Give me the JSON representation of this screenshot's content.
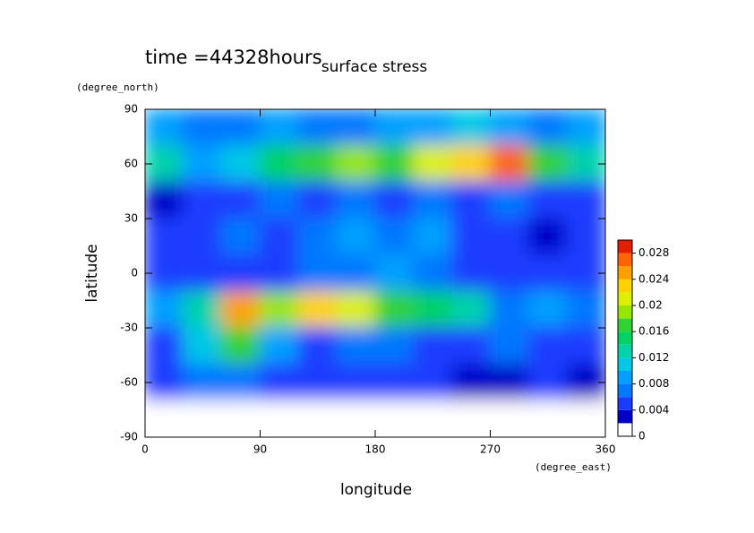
{
  "chart_data": {
    "type": "contour",
    "title": "surface stress",
    "subtitle": "time =44328hours",
    "xlabel": "longitude",
    "xunit": "(degree_east)",
    "ylabel": "latitude",
    "yunit": "(degree_north)",
    "xlim": [
      0,
      360
    ],
    "xticks": [
      0,
      90,
      180,
      270,
      360
    ],
    "ylim": [
      -90,
      90
    ],
    "yticks": [
      -90,
      -60,
      -30,
      0,
      30,
      60,
      90
    ],
    "x": [
      15,
      45,
      75,
      105,
      135,
      165,
      195,
      225,
      255,
      285,
      315,
      345
    ],
    "y": [
      80,
      60,
      40,
      20,
      0,
      -20,
      -40,
      -60,
      -80
    ],
    "z": [
      [
        0.008,
        0.006,
        0.006,
        0.008,
        0.006,
        0.006,
        0.008,
        0.008,
        0.01,
        0.008,
        0.006,
        0.008
      ],
      [
        0.012,
        0.008,
        0.01,
        0.014,
        0.016,
        0.018,
        0.016,
        0.02,
        0.022,
        0.026,
        0.016,
        0.012
      ],
      [
        0.002,
        0.004,
        0.004,
        0.006,
        0.004,
        0.006,
        0.004,
        0.006,
        0.004,
        0.006,
        0.004,
        0.004
      ],
      [
        0.004,
        0.004,
        0.006,
        0.004,
        0.006,
        0.008,
        0.006,
        0.008,
        0.004,
        0.004,
        0.002,
        0.004
      ],
      [
        0.004,
        0.004,
        0.004,
        0.004,
        0.006,
        0.006,
        0.008,
        0.006,
        0.004,
        0.004,
        0.004,
        0.004
      ],
      [
        0.008,
        0.012,
        0.024,
        0.018,
        0.022,
        0.02,
        0.016,
        0.014,
        0.012,
        0.006,
        0.008,
        0.006
      ],
      [
        0.004,
        0.01,
        0.016,
        0.008,
        0.004,
        0.006,
        0.006,
        0.004,
        0.004,
        0.006,
        0.004,
        0.004
      ],
      [
        0.004,
        0.006,
        0.006,
        0.004,
        0.004,
        0.004,
        0.004,
        0.004,
        0.002,
        0.002,
        0.004,
        0.002
      ],
      [
        0,
        0,
        0,
        0,
        0,
        0,
        0,
        0,
        0,
        0,
        0,
        0
      ]
    ],
    "clim": [
      0,
      0.03
    ],
    "cticks": [
      0,
      0.004,
      0.008,
      0.012,
      0.016,
      0.02,
      0.024,
      0.028
    ],
    "colors": [
      "#ffffff",
      "#0000c8",
      "#1a3cff",
      "#0078ff",
      "#00a0ff",
      "#00c8e6",
      "#00d2aa",
      "#00d264",
      "#32d232",
      "#96e600",
      "#dcf000",
      "#ffd200",
      "#ffa000",
      "#ff6400",
      "#e61e00"
    ]
  }
}
